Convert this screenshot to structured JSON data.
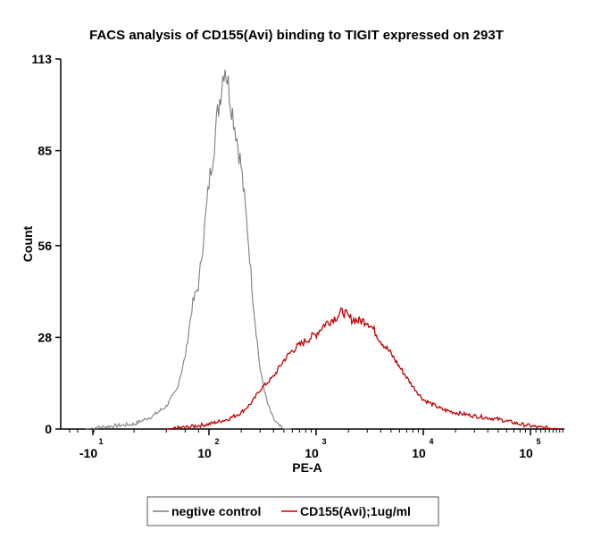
{
  "chart_data": {
    "type": "line",
    "title": "FACS analysis of CD155(Avi) binding to TIGIT expressed on 293T",
    "xlabel": "PE-A",
    "ylabel": "Count",
    "xscale": "biexponential",
    "xlim": [
      -30,
      200000
    ],
    "ylim": [
      0,
      113
    ],
    "yticks": [
      0,
      28,
      56,
      85,
      113
    ],
    "xticks": [
      {
        "value": -10,
        "base": "-10",
        "exp": "1"
      },
      {
        "value": 100,
        "base": "10",
        "exp": "2"
      },
      {
        "value": 1000,
        "base": "10",
        "exp": "3"
      },
      {
        "value": 10000,
        "base": "10",
        "exp": "4"
      },
      {
        "value": 100000,
        "base": "10",
        "exp": "5"
      }
    ],
    "legend_position": "bottom-center",
    "series": [
      {
        "name": "negtive control",
        "color": "#7f7f7f",
        "points": [
          [
            -10,
            0
          ],
          [
            0,
            0.3
          ],
          [
            10,
            0.6
          ],
          [
            20,
            1.5
          ],
          [
            30,
            4
          ],
          [
            40,
            7
          ],
          [
            50,
            12
          ],
          [
            60,
            22
          ],
          [
            70,
            38
          ],
          [
            80,
            44
          ],
          [
            90,
            60
          ],
          [
            100,
            75
          ],
          [
            110,
            85
          ],
          [
            120,
            96
          ],
          [
            130,
            104
          ],
          [
            140,
            112
          ],
          [
            150,
            106
          ],
          [
            160,
            100
          ],
          [
            180,
            90
          ],
          [
            200,
            80
          ],
          [
            230,
            60
          ],
          [
            260,
            38
          ],
          [
            300,
            18
          ],
          [
            350,
            8
          ],
          [
            400,
            3
          ],
          [
            450,
            1
          ],
          [
            500,
            0
          ],
          [
            600,
            0
          ]
        ]
      },
      {
        "name": "CD155(Avi);1ug/ml",
        "color": "#c00000",
        "points": [
          [
            40,
            0
          ],
          [
            60,
            0.5
          ],
          [
            100,
            1.5
          ],
          [
            150,
            3
          ],
          [
            200,
            5
          ],
          [
            250,
            8
          ],
          [
            300,
            12
          ],
          [
            400,
            16
          ],
          [
            500,
            21
          ],
          [
            600,
            24
          ],
          [
            800,
            27
          ],
          [
            1000,
            29
          ],
          [
            1200,
            32
          ],
          [
            1500,
            34
          ],
          [
            1800,
            36
          ],
          [
            2000,
            34
          ],
          [
            2500,
            33
          ],
          [
            3000,
            33
          ],
          [
            3500,
            30
          ],
          [
            4000,
            27
          ],
          [
            5000,
            23
          ],
          [
            6000,
            19
          ],
          [
            8000,
            13
          ],
          [
            10000,
            9
          ],
          [
            15000,
            6
          ],
          [
            20000,
            5
          ],
          [
            30000,
            4
          ],
          [
            50000,
            3
          ],
          [
            80000,
            1.5
          ],
          [
            120000,
            0.5
          ],
          [
            200000,
            0
          ]
        ]
      }
    ]
  }
}
